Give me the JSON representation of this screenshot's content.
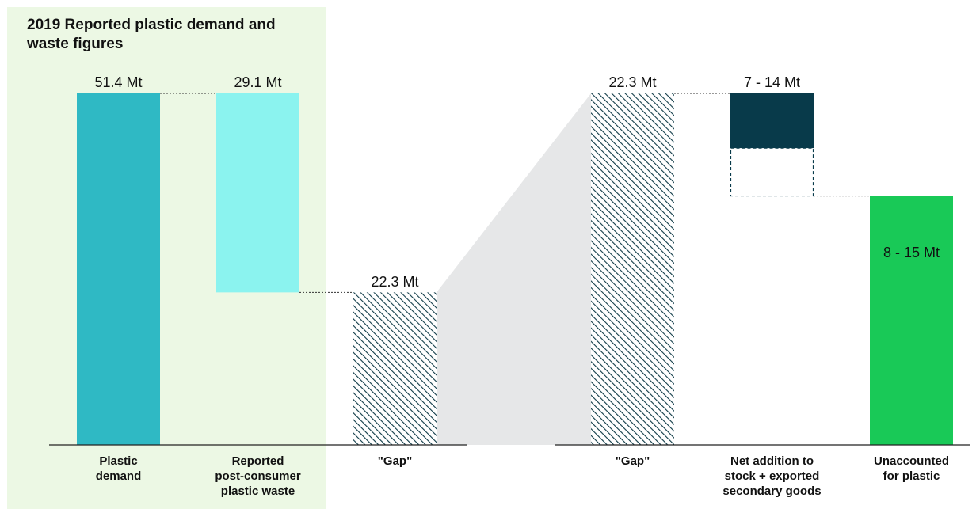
{
  "chart_data": {
    "type": "bar",
    "title": "2019 Reported plastic demand and waste figures",
    "unit": "Mt",
    "ylim": [
      0,
      51.4
    ],
    "grid": false,
    "legend": "none",
    "bars": [
      {
        "category": [
          "Plastic",
          "demand"
        ],
        "base": 0,
        "top": 51.4,
        "label": "51.4 Mt",
        "color": "#2fb9c4",
        "fill": "solid",
        "highlighted": true
      },
      {
        "category": [
          "Reported",
          "post-consumer",
          "plastic waste"
        ],
        "base": 22.3,
        "top": 51.4,
        "label": "29.1 Mt",
        "color": "#8bf3ef",
        "fill": "solid",
        "highlighted": true
      },
      {
        "category": [
          "\"Gap\""
        ],
        "base": 0,
        "top": 22.3,
        "label": "22.3 Mt",
        "color": "#0f3b47",
        "fill": "hatched",
        "highlighted": false
      },
      {
        "category": [
          "\"Gap\""
        ],
        "base": 0,
        "top": 51.4,
        "label": "22.3 Mt",
        "color": "#0f3b47",
        "fill": "hatched",
        "highlighted": false
      },
      {
        "category": [
          "Net addition to",
          "stock + exported",
          "secondary goods"
        ],
        "base": 36.4,
        "top": 51.4,
        "range_low_top": 43.4,
        "label": "7 - 14 Mt",
        "color": "#083a4a",
        "fill": "solid-with-dashed-range",
        "highlighted": false
      },
      {
        "category": [
          "Unaccounted",
          "for plastic"
        ],
        "base": 0,
        "top": 36.4,
        "label": "8 - 15 Mt",
        "color": "#19c957",
        "fill": "solid",
        "highlighted": false
      }
    ],
    "colors": {
      "highlight_panel": "#ecf8e4",
      "connector": "#333333",
      "zoom_band": "#e6e7e8",
      "axis": "#222222"
    }
  }
}
